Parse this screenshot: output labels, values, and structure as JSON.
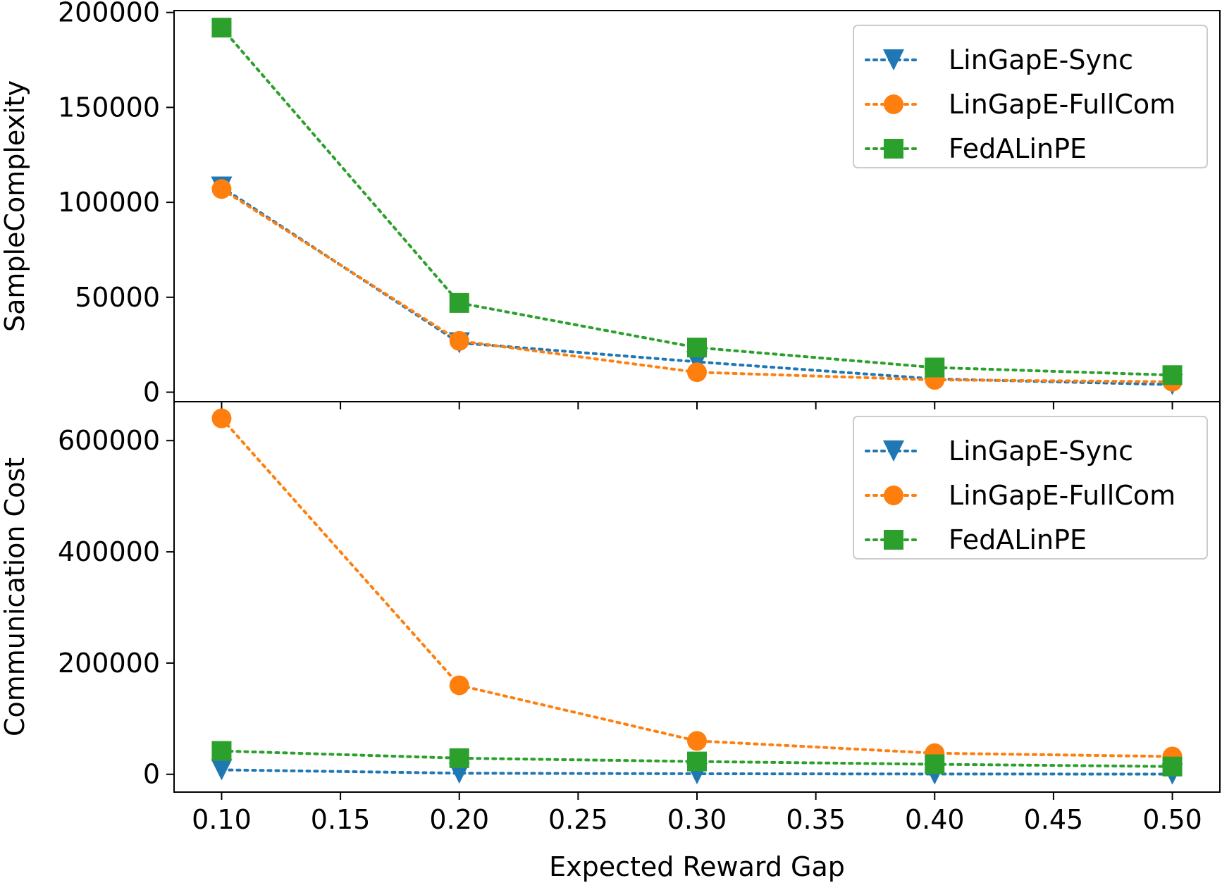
{
  "chart_data": [
    {
      "type": "line",
      "xlabel": "",
      "ylabel": "SampleComplexity",
      "x": [
        0.1,
        0.2,
        0.3,
        0.4,
        0.5
      ],
      "xlim": [
        0.08,
        0.52
      ],
      "ylim": [
        -5000,
        201000
      ],
      "xticks": [
        "0.10",
        "0.15",
        "0.20",
        "0.25",
        "0.30",
        "0.35",
        "0.40",
        "0.45",
        "0.50"
      ],
      "xtick_values": [
        0.1,
        0.15,
        0.2,
        0.25,
        0.3,
        0.35,
        0.4,
        0.45,
        0.5
      ],
      "show_xtick_labels": false,
      "yticks": [
        "0",
        "50000",
        "100000",
        "150000",
        "200000"
      ],
      "ytick_values": [
        0,
        50000,
        100000,
        150000,
        200000
      ],
      "grid": false,
      "legend_position": "top-right",
      "series": [
        {
          "name": "LinGapE-Sync",
          "marker": "triangle-down",
          "color": "#1f77b4",
          "values": [
            108000,
            26000,
            16000,
            7000,
            4000
          ]
        },
        {
          "name": "LinGapE-FullCom",
          "marker": "circle",
          "color": "#ff7f0e",
          "values": [
            107000,
            27000,
            10500,
            6500,
            5500
          ]
        },
        {
          "name": "FedALinPE",
          "marker": "square",
          "color": "#2ca02c",
          "values": [
            192000,
            47000,
            23500,
            13000,
            9000
          ]
        }
      ]
    },
    {
      "type": "line",
      "xlabel": "Expected Reward Gap",
      "ylabel": "Communication Cost",
      "x": [
        0.1,
        0.2,
        0.3,
        0.4,
        0.5
      ],
      "xlim": [
        0.08,
        0.52
      ],
      "ylim": [
        -32000,
        670000
      ],
      "xticks": [
        "0.10",
        "0.15",
        "0.20",
        "0.25",
        "0.30",
        "0.35",
        "0.40",
        "0.45",
        "0.50"
      ],
      "xtick_values": [
        0.1,
        0.15,
        0.2,
        0.25,
        0.3,
        0.35,
        0.4,
        0.45,
        0.5
      ],
      "show_xtick_labels": true,
      "yticks": [
        "0",
        "200000",
        "400000",
        "600000"
      ],
      "ytick_values": [
        0,
        200000,
        400000,
        600000
      ],
      "grid": false,
      "legend_position": "top-right",
      "series": [
        {
          "name": "LinGapE-Sync",
          "marker": "triangle-down",
          "color": "#1f77b4",
          "values": [
            8000,
            2000,
            1000,
            500,
            300
          ]
        },
        {
          "name": "LinGapE-FullCom",
          "marker": "circle",
          "color": "#ff7f0e",
          "values": [
            640000,
            160000,
            60000,
            38000,
            32000
          ]
        },
        {
          "name": "FedALinPE",
          "marker": "square",
          "color": "#2ca02c",
          "values": [
            42000,
            29000,
            23000,
            18000,
            14000
          ]
        }
      ]
    }
  ]
}
